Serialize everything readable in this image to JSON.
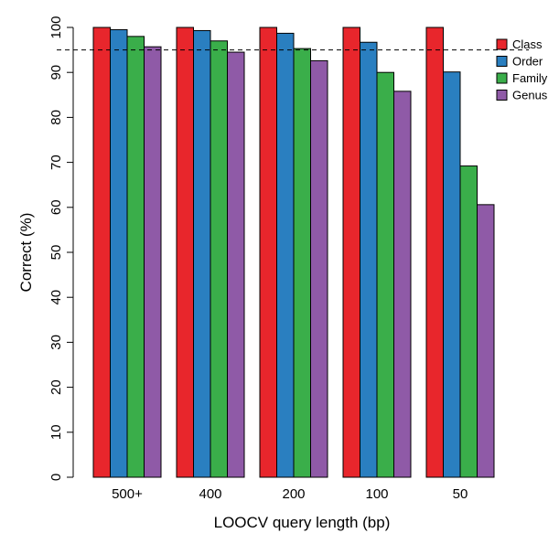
{
  "chart_data": {
    "type": "bar",
    "title": "",
    "xlabel": "LOOCV query length (bp)",
    "ylabel": "Correct (%)",
    "ylim": [
      0,
      100
    ],
    "yticks": [
      0,
      10,
      20,
      30,
      40,
      50,
      60,
      70,
      80,
      90,
      100
    ],
    "categories": [
      "500+",
      "400",
      "200",
      "100",
      "50"
    ],
    "series": [
      {
        "name": "Class",
        "color": "#e8262c",
        "values": [
          100,
          100,
          100,
          100,
          100
        ]
      },
      {
        "name": "Order",
        "color": "#2a7fc0",
        "values": [
          99.5,
          99.3,
          98.7,
          96.7,
          90.1
        ]
      },
      {
        "name": "Family",
        "color": "#3aae4a",
        "values": [
          98.0,
          97.0,
          95.3,
          90.0,
          69.2
        ]
      },
      {
        "name": "Genus",
        "color": "#8f5aa7",
        "values": [
          95.7,
          94.5,
          92.6,
          85.8,
          60.6
        ]
      }
    ],
    "reference_line": {
      "value": 95,
      "style": "dashed"
    },
    "legend_position": "top-right",
    "grid": false
  }
}
